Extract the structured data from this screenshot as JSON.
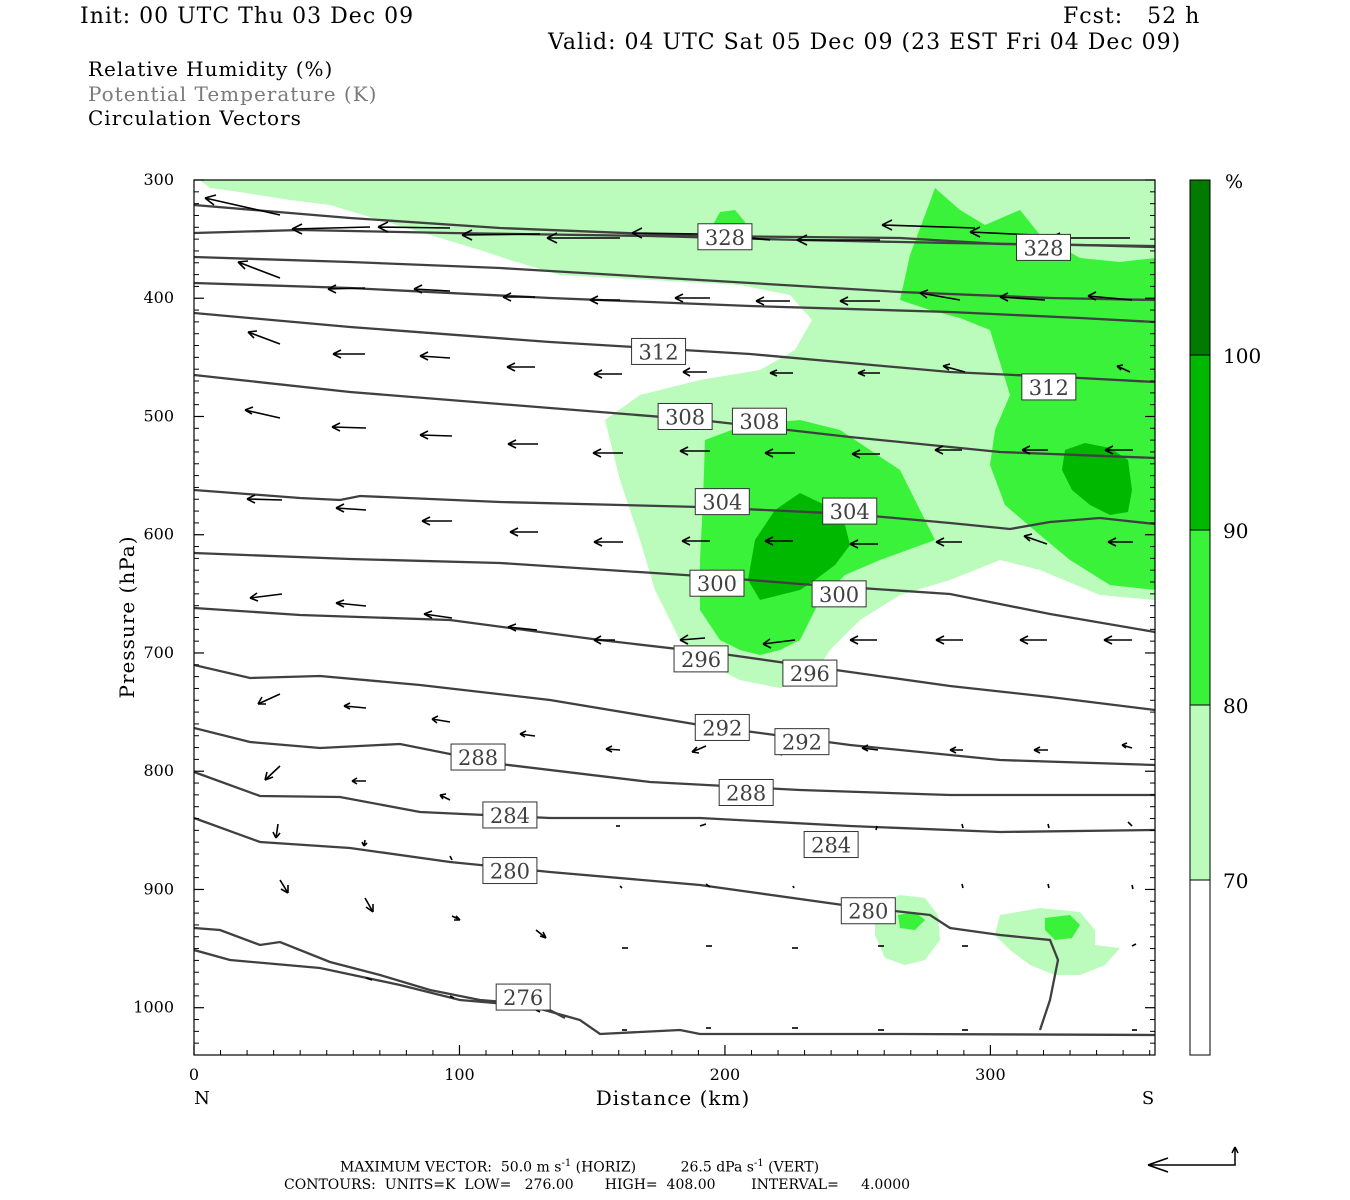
{
  "header": {
    "init": "Init: 00 UTC Thu 03 Dec 09",
    "fcst": "Fcst:   52 h",
    "valid": "Valid: 04 UTC Sat 05 Dec 09 (23 EST Fri 04 Dec 09)"
  },
  "legend": {
    "rh": "Relative Humidity (%)",
    "theta": "Potential Temperature (K)",
    "vectors": "Circulation Vectors"
  },
  "colorbar": {
    "unit": "%",
    "levels": [
      "70",
      "80",
      "90",
      "100"
    ],
    "colors": [
      "#ffffff",
      "#bbfbbb",
      "#3bf23b",
      "#00b800",
      "#007a00"
    ]
  },
  "footer": {
    "max_label": "MAXIMUM VECTOR:",
    "max_horiz": "50.0 m s",
    "max_horiz_unit": "(HORIZ)",
    "max_vert": "26.5 dPa s",
    "max_vert_unit": "(VERT)",
    "exp": "-1",
    "contours": "CONTOURS:  UNITS=K  LOW=   276.00       HIGH=  408.00        INTERVAL=     4.0000"
  },
  "chart_data": {
    "type": "cross-section",
    "xlabel": "Distance (km)",
    "ylabel": "Pressure (hPa)",
    "xlim": [
      0,
      362
    ],
    "ylim": [
      1040,
      300
    ],
    "x_ticks": [
      "0",
      "100",
      "200",
      "300"
    ],
    "y_ticks": [
      "300",
      "400",
      "500",
      "600",
      "700",
      "800",
      "900",
      "1000"
    ],
    "x_end_labels": {
      "left": "N",
      "right": "S"
    },
    "theta_levels": [
      276,
      280,
      284,
      288,
      292,
      296,
      300,
      304,
      308,
      312,
      328
    ],
    "theta_labels": [
      {
        "text": "328",
        "x": 200,
        "p": 348
      },
      {
        "text": "328",
        "x": 320,
        "p": 357
      },
      {
        "text": "312",
        "x": 175,
        "p": 445
      },
      {
        "text": "312",
        "x": 322,
        "p": 475
      },
      {
        "text": "308",
        "x": 185,
        "p": 500
      },
      {
        "text": "308",
        "x": 213,
        "p": 504
      },
      {
        "text": "304",
        "x": 199,
        "p": 572
      },
      {
        "text": "304",
        "x": 247,
        "p": 580
      },
      {
        "text": "300",
        "x": 197,
        "p": 641
      },
      {
        "text": "300",
        "x": 243,
        "p": 650
      },
      {
        "text": "296",
        "x": 191,
        "p": 705
      },
      {
        "text": "296",
        "x": 232,
        "p": 717
      },
      {
        "text": "292",
        "x": 199,
        "p": 763
      },
      {
        "text": "292",
        "x": 229,
        "p": 775
      },
      {
        "text": "288",
        "x": 107,
        "p": 788
      },
      {
        "text": "288",
        "x": 208,
        "p": 818
      },
      {
        "text": "284",
        "x": 119,
        "p": 837
      },
      {
        "text": "284",
        "x": 240,
        "p": 862
      },
      {
        "text": "280",
        "x": 119,
        "p": 884
      },
      {
        "text": "280",
        "x": 254,
        "p": 918
      },
      {
        "text": "276",
        "x": 124,
        "p": 991
      }
    ]
  }
}
